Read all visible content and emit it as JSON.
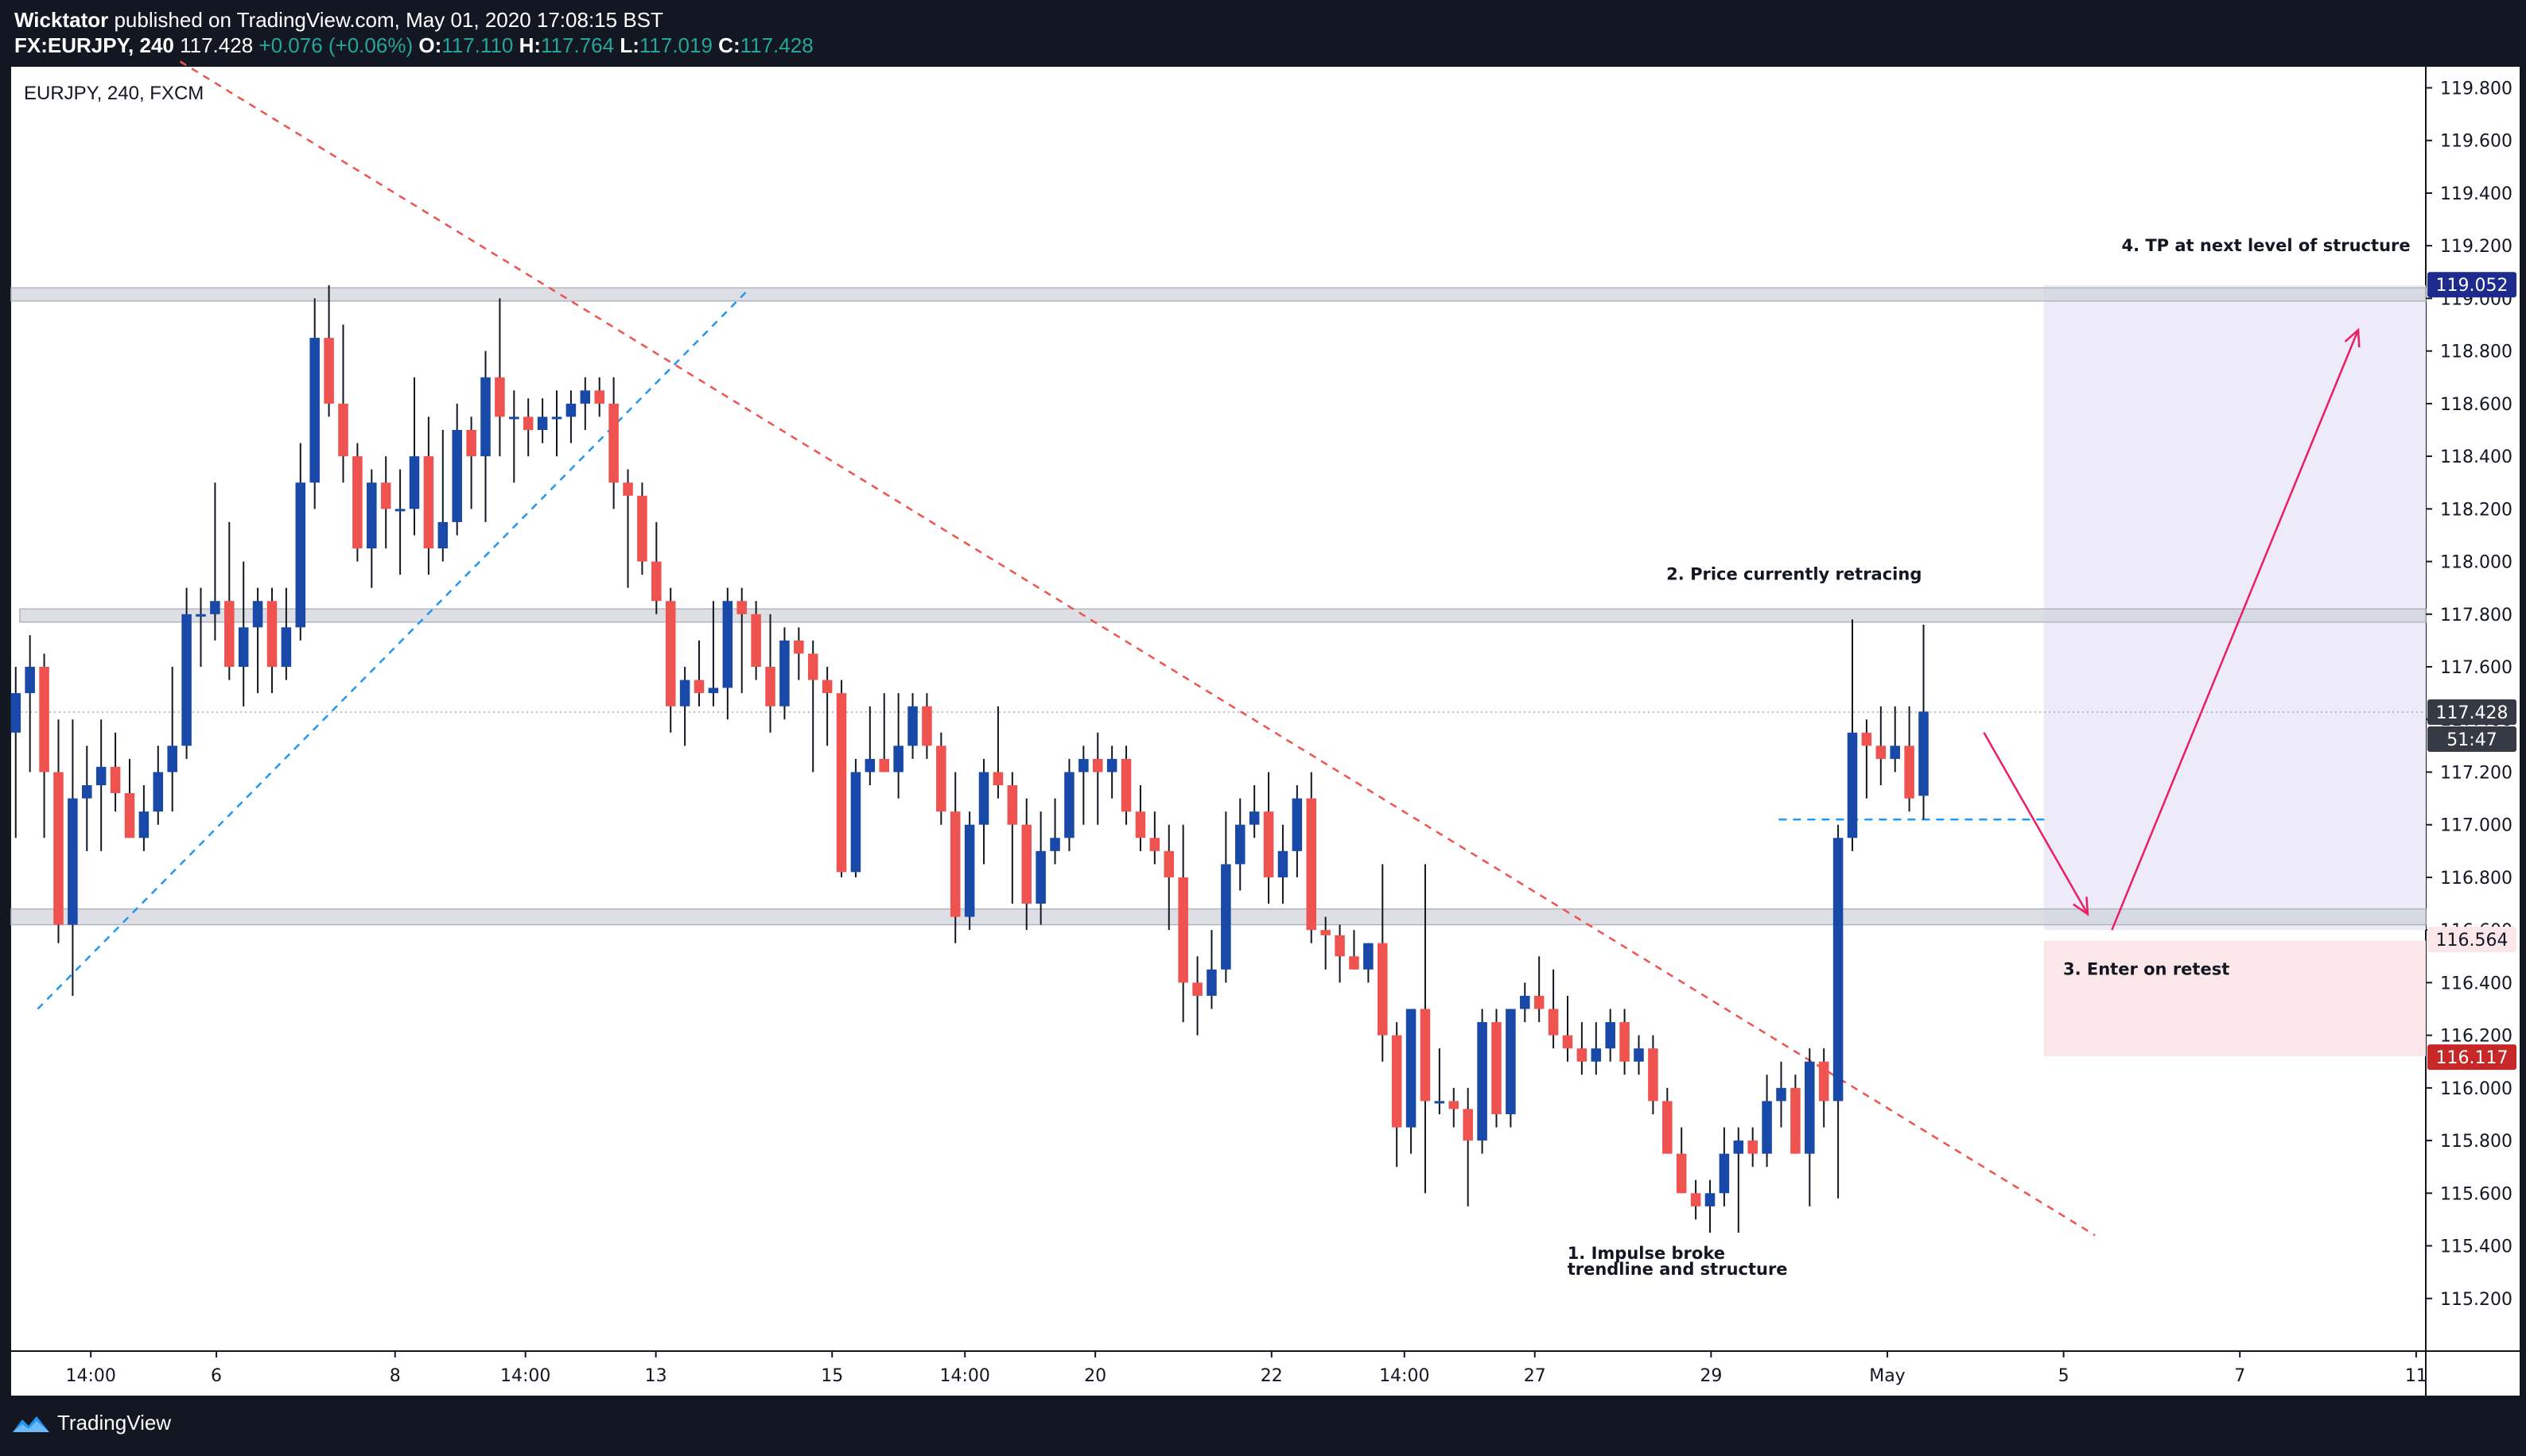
{
  "header": {
    "line1_author": "Wicktator",
    "line1_rest": "published on TradingView.com, May 01, 2020 17:08:15 BST",
    "symbol_interval": "FX:EURJPY, 240",
    "last": "117.428",
    "change": "+0.076 (+0.06%)",
    "o_label": "O:",
    "o_value": "117.110",
    "h_label": "H:",
    "h_value": "117.764",
    "l_label": "L:",
    "l_value": "117.019",
    "c_label": "C:",
    "c_value": "117.428"
  },
  "legend_symbol": "EURJPY, 240, FXCM",
  "footer": {
    "brand": "TradingView"
  },
  "colors": {
    "up": "#1848a8",
    "down": "#ef5350",
    "wick": "#131722",
    "annotation": "#e91e63",
    "trend_down": "#ef5350",
    "trend_up": "#2196f3",
    "zone": "#d1d4dc",
    "target_box": "#ecebf7",
    "entry_box": "#fbe7e9"
  },
  "chart_data": {
    "type": "candlestick",
    "symbol": "EURJPY",
    "interval": "240",
    "ylim": [
      115.0,
      119.88
    ],
    "yticks": [
      "115.200",
      "115.400",
      "115.600",
      "115.800",
      "116.000",
      "116.200",
      "116.400",
      "116.600",
      "116.800",
      "117.000",
      "117.200",
      "117.400",
      "117.600",
      "117.800",
      "118.000",
      "118.200",
      "118.400",
      "118.600",
      "118.800",
      "119.000",
      "119.200",
      "119.400",
      "119.600",
      "119.800"
    ],
    "xticks": [
      {
        "label": "14:00",
        "pos": 0.033
      },
      {
        "label": "6",
        "pos": 0.085
      },
      {
        "label": "8",
        "pos": 0.159
      },
      {
        "label": "14:00",
        "pos": 0.213
      },
      {
        "label": "13",
        "pos": 0.267
      },
      {
        "label": "15",
        "pos": 0.34
      },
      {
        "label": "14:00",
        "pos": 0.395
      },
      {
        "label": "20",
        "pos": 0.449
      },
      {
        "label": "22",
        "pos": 0.522
      },
      {
        "label": "14:00",
        "pos": 0.577
      },
      {
        "label": "27",
        "pos": 0.631
      },
      {
        "label": "29",
        "pos": 0.704
      },
      {
        "label": "May",
        "pos": 0.777
      },
      {
        "label": "5",
        "pos": 0.85
      },
      {
        "label": "7",
        "pos": 0.923
      },
      {
        "label": "11",
        "pos": 0.996
      }
    ],
    "candles": [
      {
        "o": 117.35,
        "h": 117.6,
        "l": 116.95,
        "c": 117.5
      },
      {
        "o": 117.5,
        "h": 117.72,
        "l": 117.2,
        "c": 117.6
      },
      {
        "o": 117.6,
        "h": 117.65,
        "l": 116.95,
        "c": 117.2
      },
      {
        "o": 117.2,
        "h": 117.4,
        "l": 116.55,
        "c": 116.62
      },
      {
        "o": 116.62,
        "h": 117.4,
        "l": 116.35,
        "c": 117.1
      },
      {
        "o": 117.1,
        "h": 117.3,
        "l": 116.9,
        "c": 117.15
      },
      {
        "o": 117.15,
        "h": 117.4,
        "l": 116.9,
        "c": 117.22
      },
      {
        "o": 117.22,
        "h": 117.35,
        "l": 117.05,
        "c": 117.12
      },
      {
        "o": 117.12,
        "h": 117.25,
        "l": 116.95,
        "c": 116.95
      },
      {
        "o": 116.95,
        "h": 117.15,
        "l": 116.9,
        "c": 117.05
      },
      {
        "o": 117.05,
        "h": 117.3,
        "l": 117.0,
        "c": 117.2
      },
      {
        "o": 117.2,
        "h": 117.6,
        "l": 117.05,
        "c": 117.3
      },
      {
        "o": 117.3,
        "h": 117.9,
        "l": 117.25,
        "c": 117.8
      },
      {
        "o": 117.8,
        "h": 117.9,
        "l": 117.6,
        "c": 117.8
      },
      {
        "o": 117.8,
        "h": 118.3,
        "l": 117.7,
        "c": 117.85
      },
      {
        "o": 117.85,
        "h": 118.15,
        "l": 117.55,
        "c": 117.6
      },
      {
        "o": 117.6,
        "h": 118.0,
        "l": 117.45,
        "c": 117.75
      },
      {
        "o": 117.75,
        "h": 117.9,
        "l": 117.5,
        "c": 117.85
      },
      {
        "o": 117.85,
        "h": 117.9,
        "l": 117.5,
        "c": 117.6
      },
      {
        "o": 117.6,
        "h": 117.9,
        "l": 117.55,
        "c": 117.75
      },
      {
        "o": 117.75,
        "h": 118.45,
        "l": 117.7,
        "c": 118.3
      },
      {
        "o": 118.3,
        "h": 119.0,
        "l": 118.2,
        "c": 118.85
      },
      {
        "o": 118.85,
        "h": 119.05,
        "l": 118.55,
        "c": 118.6
      },
      {
        "o": 118.6,
        "h": 118.9,
        "l": 118.3,
        "c": 118.4
      },
      {
        "o": 118.4,
        "h": 118.45,
        "l": 118.0,
        "c": 118.05
      },
      {
        "o": 118.05,
        "h": 118.35,
        "l": 117.9,
        "c": 118.3
      },
      {
        "o": 118.3,
        "h": 118.4,
        "l": 118.05,
        "c": 118.2
      },
      {
        "o": 118.2,
        "h": 118.35,
        "l": 117.95,
        "c": 118.2
      },
      {
        "o": 118.2,
        "h": 118.7,
        "l": 118.1,
        "c": 118.4
      },
      {
        "o": 118.4,
        "h": 118.55,
        "l": 117.95,
        "c": 118.05
      },
      {
        "o": 118.05,
        "h": 118.5,
        "l": 118.0,
        "c": 118.15
      },
      {
        "o": 118.15,
        "h": 118.6,
        "l": 118.1,
        "c": 118.5
      },
      {
        "o": 118.5,
        "h": 118.55,
        "l": 118.2,
        "c": 118.4
      },
      {
        "o": 118.4,
        "h": 118.8,
        "l": 118.15,
        "c": 118.7
      },
      {
        "o": 118.7,
        "h": 119.0,
        "l": 118.4,
        "c": 118.55
      },
      {
        "o": 118.55,
        "h": 118.65,
        "l": 118.3,
        "c": 118.55
      },
      {
        "o": 118.55,
        "h": 118.62,
        "l": 118.4,
        "c": 118.5
      },
      {
        "o": 118.5,
        "h": 118.62,
        "l": 118.45,
        "c": 118.55
      },
      {
        "o": 118.55,
        "h": 118.65,
        "l": 118.4,
        "c": 118.55
      },
      {
        "o": 118.55,
        "h": 118.65,
        "l": 118.45,
        "c": 118.6
      },
      {
        "o": 118.6,
        "h": 118.7,
        "l": 118.5,
        "c": 118.65
      },
      {
        "o": 118.65,
        "h": 118.7,
        "l": 118.55,
        "c": 118.6
      },
      {
        "o": 118.6,
        "h": 118.7,
        "l": 118.2,
        "c": 118.3
      },
      {
        "o": 118.3,
        "h": 118.35,
        "l": 117.9,
        "c": 118.25
      },
      {
        "o": 118.25,
        "h": 118.3,
        "l": 117.95,
        "c": 118.0
      },
      {
        "o": 118.0,
        "h": 118.15,
        "l": 117.8,
        "c": 117.85
      },
      {
        "o": 117.85,
        "h": 117.9,
        "l": 117.35,
        "c": 117.45
      },
      {
        "o": 117.45,
        "h": 117.6,
        "l": 117.3,
        "c": 117.55
      },
      {
        "o": 117.55,
        "h": 117.7,
        "l": 117.45,
        "c": 117.5
      },
      {
        "o": 117.5,
        "h": 117.85,
        "l": 117.45,
        "c": 117.52
      },
      {
        "o": 117.52,
        "h": 117.9,
        "l": 117.4,
        "c": 117.85
      },
      {
        "o": 117.85,
        "h": 117.9,
        "l": 117.5,
        "c": 117.8
      },
      {
        "o": 117.8,
        "h": 117.85,
        "l": 117.55,
        "c": 117.6
      },
      {
        "o": 117.6,
        "h": 117.8,
        "l": 117.35,
        "c": 117.45
      },
      {
        "o": 117.45,
        "h": 117.75,
        "l": 117.4,
        "c": 117.7
      },
      {
        "o": 117.7,
        "h": 117.75,
        "l": 117.55,
        "c": 117.65
      },
      {
        "o": 117.65,
        "h": 117.7,
        "l": 117.2,
        "c": 117.55
      },
      {
        "o": 117.55,
        "h": 117.6,
        "l": 117.3,
        "c": 117.5
      },
      {
        "o": 117.5,
        "h": 117.55,
        "l": 116.8,
        "c": 116.82
      },
      {
        "o": 116.82,
        "h": 117.25,
        "l": 116.8,
        "c": 117.2
      },
      {
        "o": 117.2,
        "h": 117.45,
        "l": 117.15,
        "c": 117.25
      },
      {
        "o": 117.25,
        "h": 117.5,
        "l": 117.2,
        "c": 117.2
      },
      {
        "o": 117.2,
        "h": 117.5,
        "l": 117.1,
        "c": 117.3
      },
      {
        "o": 117.3,
        "h": 117.5,
        "l": 117.25,
        "c": 117.45
      },
      {
        "o": 117.45,
        "h": 117.5,
        "l": 117.25,
        "c": 117.3
      },
      {
        "o": 117.3,
        "h": 117.35,
        "l": 117.0,
        "c": 117.05
      },
      {
        "o": 117.05,
        "h": 117.2,
        "l": 116.55,
        "c": 116.65
      },
      {
        "o": 116.65,
        "h": 117.05,
        "l": 116.6,
        "c": 117.0
      },
      {
        "o": 117.0,
        "h": 117.25,
        "l": 116.85,
        "c": 117.2
      },
      {
        "o": 117.2,
        "h": 117.45,
        "l": 117.1,
        "c": 117.15
      },
      {
        "o": 117.15,
        "h": 117.2,
        "l": 116.7,
        "c": 117.0
      },
      {
        "o": 117.0,
        "h": 117.1,
        "l": 116.6,
        "c": 116.7
      },
      {
        "o": 116.7,
        "h": 117.05,
        "l": 116.62,
        "c": 116.9
      },
      {
        "o": 116.9,
        "h": 117.1,
        "l": 116.85,
        "c": 116.95
      },
      {
        "o": 116.95,
        "h": 117.25,
        "l": 116.9,
        "c": 117.2
      },
      {
        "o": 117.2,
        "h": 117.3,
        "l": 117.0,
        "c": 117.25
      },
      {
        "o": 117.25,
        "h": 117.35,
        "l": 117.0,
        "c": 117.2
      },
      {
        "o": 117.2,
        "h": 117.3,
        "l": 117.1,
        "c": 117.25
      },
      {
        "o": 117.25,
        "h": 117.3,
        "l": 117.0,
        "c": 117.05
      },
      {
        "o": 117.05,
        "h": 117.15,
        "l": 116.9,
        "c": 116.95
      },
      {
        "o": 116.95,
        "h": 117.05,
        "l": 116.85,
        "c": 116.9
      },
      {
        "o": 116.9,
        "h": 117.0,
        "l": 116.6,
        "c": 116.8
      },
      {
        "o": 116.8,
        "h": 117.0,
        "l": 116.25,
        "c": 116.4
      },
      {
        "o": 116.4,
        "h": 116.5,
        "l": 116.2,
        "c": 116.35
      },
      {
        "o": 116.35,
        "h": 116.6,
        "l": 116.3,
        "c": 116.45
      },
      {
        "o": 116.45,
        "h": 117.05,
        "l": 116.4,
        "c": 116.85
      },
      {
        "o": 116.85,
        "h": 117.1,
        "l": 116.75,
        "c": 117.0
      },
      {
        "o": 117.0,
        "h": 117.15,
        "l": 116.95,
        "c": 117.05
      },
      {
        "o": 117.05,
        "h": 117.2,
        "l": 116.7,
        "c": 116.8
      },
      {
        "o": 116.8,
        "h": 117.0,
        "l": 116.7,
        "c": 116.9
      },
      {
        "o": 116.9,
        "h": 117.15,
        "l": 116.8,
        "c": 117.1
      },
      {
        "o": 117.1,
        "h": 117.2,
        "l": 116.55,
        "c": 116.6
      },
      {
        "o": 116.6,
        "h": 116.65,
        "l": 116.45,
        "c": 116.58
      },
      {
        "o": 116.58,
        "h": 116.62,
        "l": 116.4,
        "c": 116.5
      },
      {
        "o": 116.5,
        "h": 116.6,
        "l": 116.45,
        "c": 116.45
      },
      {
        "o": 116.45,
        "h": 116.55,
        "l": 116.4,
        "c": 116.55
      },
      {
        "o": 116.55,
        "h": 116.85,
        "l": 116.1,
        "c": 116.2
      },
      {
        "o": 116.2,
        "h": 116.25,
        "l": 115.7,
        "c": 115.85
      },
      {
        "o": 115.85,
        "h": 116.3,
        "l": 115.75,
        "c": 116.3
      },
      {
        "o": 116.3,
        "h": 116.85,
        "l": 115.6,
        "c": 115.95
      },
      {
        "o": 115.95,
        "h": 116.15,
        "l": 115.9,
        "c": 115.95
      },
      {
        "o": 115.95,
        "h": 116.0,
        "l": 115.85,
        "c": 115.92
      },
      {
        "o": 115.92,
        "h": 116.0,
        "l": 115.55,
        "c": 115.8
      },
      {
        "o": 115.8,
        "h": 116.3,
        "l": 115.75,
        "c": 116.25
      },
      {
        "o": 116.25,
        "h": 116.3,
        "l": 115.85,
        "c": 115.9
      },
      {
        "o": 115.9,
        "h": 116.3,
        "l": 115.85,
        "c": 116.3
      },
      {
        "o": 116.3,
        "h": 116.4,
        "l": 116.25,
        "c": 116.35
      },
      {
        "o": 116.35,
        "h": 116.5,
        "l": 116.25,
        "c": 116.3
      },
      {
        "o": 116.3,
        "h": 116.45,
        "l": 116.15,
        "c": 116.2
      },
      {
        "o": 116.2,
        "h": 116.35,
        "l": 116.1,
        "c": 116.15
      },
      {
        "o": 116.15,
        "h": 116.25,
        "l": 116.05,
        "c": 116.1
      },
      {
        "o": 116.1,
        "h": 116.25,
        "l": 116.05,
        "c": 116.15
      },
      {
        "o": 116.15,
        "h": 116.3,
        "l": 116.1,
        "c": 116.25
      },
      {
        "o": 116.25,
        "h": 116.3,
        "l": 116.05,
        "c": 116.1
      },
      {
        "o": 116.1,
        "h": 116.2,
        "l": 116.05,
        "c": 116.15
      },
      {
        "o": 116.15,
        "h": 116.2,
        "l": 115.9,
        "c": 115.95
      },
      {
        "o": 115.95,
        "h": 116.0,
        "l": 115.75,
        "c": 115.75
      },
      {
        "o": 115.75,
        "h": 115.85,
        "l": 115.6,
        "c": 115.6
      },
      {
        "o": 115.6,
        "h": 115.65,
        "l": 115.5,
        "c": 115.55
      },
      {
        "o": 115.55,
        "h": 115.65,
        "l": 115.45,
        "c": 115.6
      },
      {
        "o": 115.6,
        "h": 115.85,
        "l": 115.55,
        "c": 115.75
      },
      {
        "o": 115.75,
        "h": 115.85,
        "l": 115.45,
        "c": 115.8
      },
      {
        "o": 115.8,
        "h": 115.85,
        "l": 115.7,
        "c": 115.75
      },
      {
        "o": 115.75,
        "h": 116.05,
        "l": 115.7,
        "c": 115.95
      },
      {
        "o": 115.95,
        "h": 116.1,
        "l": 115.85,
        "c": 116.0
      },
      {
        "o": 116.0,
        "h": 116.05,
        "l": 115.75,
        "c": 115.75
      },
      {
        "o": 115.75,
        "h": 116.15,
        "l": 115.55,
        "c": 116.1
      },
      {
        "o": 116.1,
        "h": 116.15,
        "l": 115.85,
        "c": 115.95
      },
      {
        "o": 115.95,
        "h": 117.0,
        "l": 115.58,
        "c": 116.95
      },
      {
        "o": 116.95,
        "h": 117.78,
        "l": 116.9,
        "c": 117.35
      },
      {
        "o": 117.35,
        "h": 117.4,
        "l": 117.1,
        "c": 117.3
      },
      {
        "o": 117.3,
        "h": 117.45,
        "l": 117.15,
        "c": 117.25
      },
      {
        "o": 117.25,
        "h": 117.45,
        "l": 117.2,
        "c": 117.3
      },
      {
        "o": 117.3,
        "h": 117.45,
        "l": 117.05,
        "c": 117.1
      },
      {
        "o": 117.11,
        "h": 117.76,
        "l": 117.02,
        "c": 117.43
      }
    ],
    "zones": [
      {
        "name": "upper-resistance-zone",
        "top": 119.04,
        "bottom": 118.99
      },
      {
        "name": "middle-resistance-zone",
        "top": 117.82,
        "bottom": 117.77
      },
      {
        "name": "lower-support-zone",
        "top": 116.68,
        "bottom": 116.62
      }
    ],
    "target_box": {
      "top": 119.05,
      "bottom": 116.6
    },
    "entry_box": {
      "top": 116.56,
      "bottom": 116.12
    },
    "current_price_line": 117.428,
    "retest_level": 117.02,
    "price_labels": [
      {
        "label": "119.052",
        "value": 119.052,
        "color": "#1e2a8c"
      },
      {
        "label": "117.428",
        "value": 117.428,
        "color": "#363a45"
      },
      {
        "label": "116.564",
        "value": 116.564,
        "color": "#fbe7e9"
      },
      {
        "label": "116.117",
        "value": 116.117,
        "color": "#c62828"
      }
    ],
    "countdown": "51:47",
    "annotations": [
      {
        "id": "ann-1",
        "text": "1. Impulse broke",
        "value": 115.35
      },
      {
        "id": "ann-1b",
        "text": "trendline and structure",
        "value": 115.29
      },
      {
        "id": "ann-2",
        "text": "2. Price currently retracing",
        "value": 117.93
      },
      {
        "id": "ann-3",
        "text": "3. Enter on retest",
        "value": 116.43
      },
      {
        "id": "ann-4",
        "text": "4. TP at next level of structure",
        "value": 119.18
      }
    ],
    "trendlines": [
      {
        "name": "descending-trendline",
        "style": "dashed",
        "color": "#ef5350",
        "from": {
          "pos": 0.07,
          "value": 119.9
        },
        "to": {
          "pos": 0.863,
          "value": 115.44
        }
      },
      {
        "name": "ascending-trendline",
        "style": "dashed",
        "color": "#2196f3",
        "from": {
          "pos": 0.011,
          "value": 116.3
        },
        "to": {
          "pos": 0.305,
          "value": 119.03
        }
      }
    ],
    "arrows": [
      {
        "name": "retrace-arrow",
        "from": {
          "pos": 0.817,
          "value": 117.35
        },
        "to": {
          "pos": 0.86,
          "value": 116.66
        }
      },
      {
        "name": "target-arrow",
        "from": {
          "pos": 0.87,
          "value": 116.6
        },
        "to": {
          "pos": 0.972,
          "value": 118.88
        }
      }
    ]
  }
}
